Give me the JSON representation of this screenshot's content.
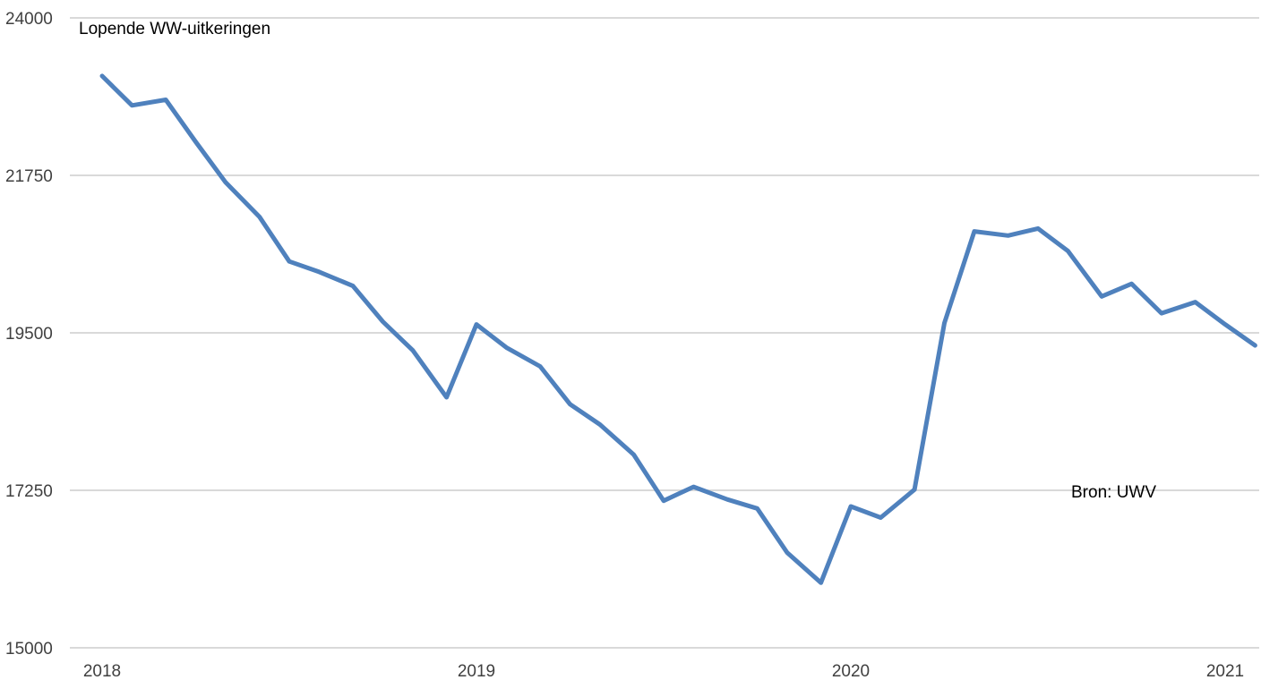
{
  "chart_data": {
    "type": "line",
    "title": "Lopende WW-uitkeringen",
    "xlabel": "",
    "ylabel": "",
    "ylim": [
      15000,
      24000
    ],
    "yticks": [
      15000,
      17250,
      19500,
      21750,
      24000
    ],
    "xlim": [
      2018,
      2021.1
    ],
    "xticks": [
      2018,
      2019,
      2020,
      2021
    ],
    "grid": true,
    "legend": "none",
    "annotation": "Bron: UWV",
    "series": [
      {
        "color": "#4f81bd",
        "x": [
          2018.0,
          2018.08,
          2018.17,
          2018.25,
          2018.33,
          2018.42,
          2018.5,
          2018.58,
          2018.67,
          2018.75,
          2018.83,
          2018.92,
          2019.0,
          2019.08,
          2019.17,
          2019.25,
          2019.33,
          2019.42,
          2019.5,
          2019.58,
          2019.67,
          2019.75,
          2019.83,
          2019.92,
          2020.0,
          2020.08,
          2020.17,
          2020.25,
          2020.33,
          2020.42,
          2020.5,
          2020.58,
          2020.67,
          2020.75,
          2020.83,
          2020.92,
          2021.0,
          2021.08
        ],
        "values": [
          23170,
          22750,
          22830,
          22230,
          21650,
          21160,
          20520,
          20370,
          20170,
          19660,
          19250,
          18580,
          19620,
          19290,
          19020,
          18480,
          18190,
          17760,
          17100,
          17300,
          17120,
          16990,
          16360,
          15930,
          17020,
          16860,
          17260,
          19640,
          20950,
          20890,
          20990,
          20670,
          20020,
          20200,
          19780,
          19940,
          19620,
          19320
        ]
      }
    ]
  }
}
